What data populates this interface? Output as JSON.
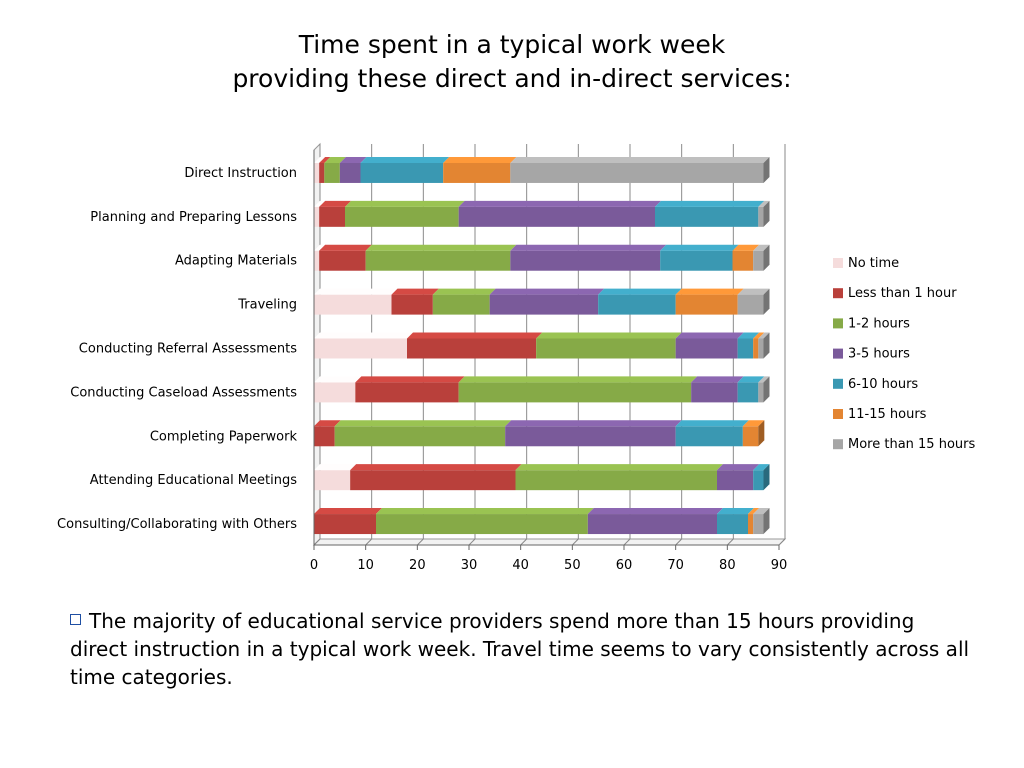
{
  "title_line1": "Time spent in a typical work week",
  "title_line2": "providing these direct and in-direct services:",
  "note_text": "The majority of educational service providers spend  more than 15 hours providing direct instruction in a typical work week. Travel time seems to vary consistently across all time categories.",
  "colors": {
    "No time": "#f5dcdc",
    "Less than 1 hour": "#b9403b",
    "1-2 hours": "#86aa47",
    "3-5 hours": "#7a5a9a",
    "6-10 hours": "#3a98b2",
    "11-15 hours": "#e38532",
    "More than 15 hours": "#a6a6a6"
  },
  "chart_data": {
    "type": "bar",
    "orientation": "horizontal",
    "stacked": true,
    "title": "",
    "xlabel": "",
    "ylabel": "",
    "xlim": [
      0,
      90
    ],
    "xticks": [
      0,
      10,
      20,
      30,
      40,
      50,
      60,
      70,
      80,
      90
    ],
    "grid": true,
    "legend_position": "right",
    "categories": [
      "Direct Instruction",
      "Planning and Preparing Lessons",
      "Adapting Materials",
      "Traveling",
      "Conducting Referral Assessments",
      "Conducting Caseload Assessments",
      "Completing Paperwork",
      "Attending Educational Meetings",
      "Consulting/Collaborating with Others"
    ],
    "series": [
      {
        "name": "No time",
        "values": [
          1,
          1,
          1,
          15,
          18,
          8,
          0,
          7,
          0
        ]
      },
      {
        "name": "Less than 1 hour",
        "values": [
          1,
          5,
          9,
          8,
          25,
          20,
          4,
          32,
          12
        ]
      },
      {
        "name": "1-2 hours",
        "values": [
          3,
          22,
          28,
          11,
          27,
          45,
          33,
          39,
          41
        ]
      },
      {
        "name": "3-5 hours",
        "values": [
          4,
          38,
          29,
          21,
          12,
          9,
          33,
          7,
          25
        ]
      },
      {
        "name": "6-10 hours",
        "values": [
          16,
          20,
          14,
          15,
          3,
          4,
          13,
          2,
          6
        ]
      },
      {
        "name": "11-15 hours",
        "values": [
          13,
          0,
          4,
          12,
          1,
          0,
          3,
          0,
          1
        ]
      },
      {
        "name": "More than 15 hours",
        "values": [
          49,
          1,
          2,
          5,
          1,
          1,
          0,
          0,
          2
        ]
      }
    ]
  }
}
